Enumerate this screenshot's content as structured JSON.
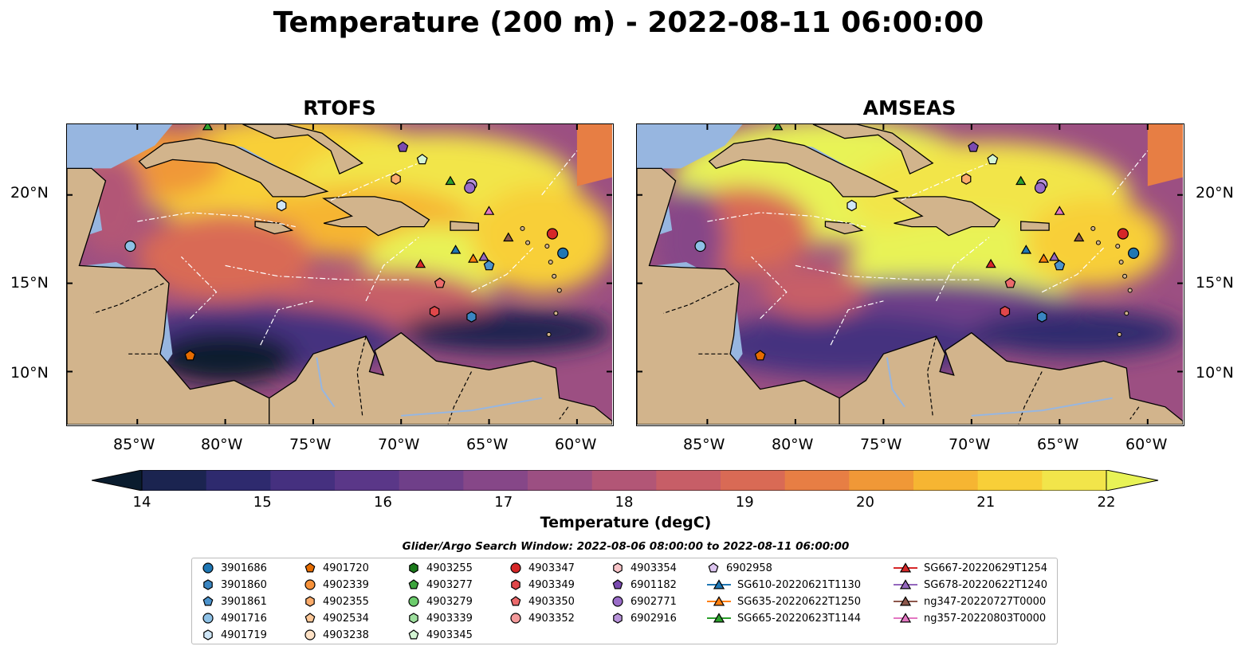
{
  "title": "Temperature (200 m) - 2022-08-11 06:00:00",
  "panels": [
    {
      "title": "RTOFS",
      "id": "rtofs"
    },
    {
      "title": "AMSEAS",
      "id": "amseas"
    }
  ],
  "axes": {
    "lon_ticks": [
      "85°W",
      "80°W",
      "75°W",
      "70°W",
      "65°W",
      "60°W"
    ],
    "lat_ticks": [
      "20°N",
      "15°N",
      "10°N"
    ],
    "lon_range": [
      -89,
      -58
    ],
    "lat_range": [
      7,
      24
    ]
  },
  "colorbar": {
    "label": "Temperature (degC)",
    "ticks": [
      "14",
      "15",
      "16",
      "17",
      "18",
      "19",
      "20",
      "21",
      "22"
    ],
    "range": [
      14,
      22
    ],
    "colors": [
      "#0a1c2e",
      "#1b2450",
      "#2e2a6e",
      "#45307f",
      "#5a3788",
      "#6f3f89",
      "#864788",
      "#9c4f82",
      "#b25676",
      "#c75e67",
      "#d96a55",
      "#e77e44",
      "#f09837",
      "#f6b532",
      "#f8cf38",
      "#f2e54a",
      "#e8f356"
    ],
    "extend": "both"
  },
  "legend": {
    "title": "Glider/Argo Search Window: 2022-08-06 08:00:00 to 2022-08-11 06:00:00",
    "columns": [
      [
        {
          "label": "3901686",
          "marker": "circle",
          "color": "#1f77b4"
        },
        {
          "label": "3901860",
          "marker": "hexagon",
          "color": "#3a85c1"
        },
        {
          "label": "3901861",
          "marker": "pentagon",
          "color": "#4c93cc"
        },
        {
          "label": "4901716",
          "marker": "circle",
          "color": "#8ec1e6"
        },
        {
          "label": "4901719",
          "marker": "hexagon",
          "color": "#cfe6f7"
        }
      ],
      [
        {
          "label": "4901720",
          "marker": "pentagon",
          "color": "#e66c00"
        },
        {
          "label": "4902339",
          "marker": "circle",
          "color": "#f7923a"
        },
        {
          "label": "4902355",
          "marker": "hexagon",
          "color": "#fbac6b"
        },
        {
          "label": "4902534",
          "marker": "pentagon",
          "color": "#fdc797"
        },
        {
          "label": "4903238",
          "marker": "circle",
          "color": "#fee2c6"
        }
      ],
      [
        {
          "label": "4903255",
          "marker": "hexagon",
          "color": "#1a7a1a"
        },
        {
          "label": "4903277",
          "marker": "pentagon",
          "color": "#3ea53e"
        },
        {
          "label": "4903279",
          "marker": "circle",
          "color": "#6ccc6c"
        },
        {
          "label": "4903339",
          "marker": "hexagon",
          "color": "#9fe09f"
        },
        {
          "label": "4903345",
          "marker": "pentagon",
          "color": "#d4f5d4"
        }
      ],
      [
        {
          "label": "4903347",
          "marker": "circle",
          "color": "#d62728"
        },
        {
          "label": "4903349",
          "marker": "hexagon",
          "color": "#e0474a"
        },
        {
          "label": "4903350",
          "marker": "pentagon",
          "color": "#ec6a6c"
        },
        {
          "label": "4903352",
          "marker": "circle",
          "color": "#f49a9b"
        }
      ],
      [
        {
          "label": "4903354",
          "marker": "hexagon",
          "color": "#f8c4c8"
        },
        {
          "label": "6901182",
          "marker": "pentagon",
          "color": "#7a4ab0"
        },
        {
          "label": "6902771",
          "marker": "circle",
          "color": "#9a6cc8"
        },
        {
          "label": "6902916",
          "marker": "hexagon",
          "color": "#b893da"
        }
      ],
      [
        {
          "label": "6902958",
          "marker": "pentagon",
          "color": "#dcc4ef"
        },
        {
          "label": "SG610-20220621T1130",
          "marker": "triangle-line",
          "color": "#1f77b4"
        },
        {
          "label": "SG635-20220622T1250",
          "marker": "triangle-line",
          "color": "#ff7f0e"
        },
        {
          "label": "SG665-20220623T1144",
          "marker": "triangle-line",
          "color": "#2ca02c"
        }
      ],
      [
        {
          "label": "SG667-20220629T1254",
          "marker": "triangle-line",
          "color": "#d62728"
        },
        {
          "label": "SG678-20220622T1240",
          "marker": "triangle-line",
          "color": "#9467bd"
        },
        {
          "label": "ng347-20220727T0000",
          "marker": "triangle-line",
          "color": "#8c564b"
        },
        {
          "label": "ng357-20220803T0000",
          "marker": "triangle-line",
          "color": "#e377c2"
        }
      ]
    ]
  },
  "markers": [
    {
      "lon": -85.4,
      "lat": 17.1,
      "marker": "circle",
      "color": "#8ec1e6"
    },
    {
      "lon": -76.8,
      "lat": 19.4,
      "marker": "hexagon",
      "color": "#cfe6f7"
    },
    {
      "lon": -82.0,
      "lat": 10.9,
      "marker": "pentagon",
      "color": "#e66c00"
    },
    {
      "lon": -69.9,
      "lat": 22.7,
      "marker": "pentagon",
      "color": "#7a4ab0"
    },
    {
      "lon": -68.8,
      "lat": 22.0,
      "marker": "pentagon",
      "color": "#d4f5d4"
    },
    {
      "lon": -70.3,
      "lat": 20.9,
      "marker": "hexagon",
      "color": "#fbac6b"
    },
    {
      "lon": -67.2,
      "lat": 20.8,
      "marker": "triangle",
      "color": "#2ca02c"
    },
    {
      "lon": -66.0,
      "lat": 20.6,
      "marker": "circle",
      "color": "#b893da"
    },
    {
      "lon": -66.1,
      "lat": 20.4,
      "marker": "circle",
      "color": "#9a6cc8"
    },
    {
      "lon": -65.0,
      "lat": 19.1,
      "marker": "triangle",
      "color": "#e377c2"
    },
    {
      "lon": -63.9,
      "lat": 17.6,
      "marker": "triangle",
      "color": "#8c564b"
    },
    {
      "lon": -61.4,
      "lat": 17.8,
      "marker": "circle",
      "color": "#d62728"
    },
    {
      "lon": -60.8,
      "lat": 16.7,
      "marker": "circle",
      "color": "#1f77b4"
    },
    {
      "lon": -66.9,
      "lat": 16.9,
      "marker": "triangle",
      "color": "#1f77b4"
    },
    {
      "lon": -65.9,
      "lat": 16.4,
      "marker": "triangle",
      "color": "#ff7f0e"
    },
    {
      "lon": -65.3,
      "lat": 16.5,
      "marker": "triangle",
      "color": "#9467bd"
    },
    {
      "lon": -65.0,
      "lat": 16.0,
      "marker": "pentagon",
      "color": "#4c93cc"
    },
    {
      "lon": -68.9,
      "lat": 16.1,
      "marker": "triangle",
      "color": "#d62728"
    },
    {
      "lon": -67.8,
      "lat": 15.0,
      "marker": "pentagon",
      "color": "#ec6a6c"
    },
    {
      "lon": -68.1,
      "lat": 13.4,
      "marker": "hexagon",
      "color": "#e0474a"
    },
    {
      "lon": -66.0,
      "lat": 13.1,
      "marker": "hexagon",
      "color": "#3a85c1"
    },
    {
      "lon": -81.0,
      "lat": 23.9,
      "marker": "triangle",
      "color": "#2ca02c"
    }
  ]
}
